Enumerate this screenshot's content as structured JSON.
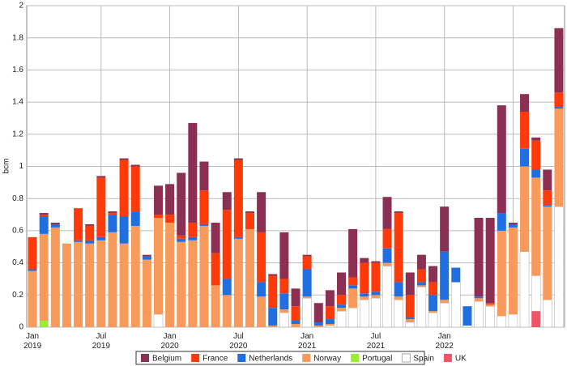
{
  "chart_data": {
    "type": "bar",
    "stacked": true,
    "y_label": "bcm",
    "categories": [
      "Jan 2019",
      null,
      null,
      null,
      null,
      null,
      "Jul 2019",
      null,
      null,
      null,
      null,
      null,
      "Jan 2020",
      null,
      null,
      null,
      null,
      null,
      "Jul 2020",
      null,
      null,
      null,
      null,
      null,
      "Jan 2021",
      null,
      null,
      null,
      null,
      null,
      "Jul 2021",
      null,
      null,
      null,
      null,
      null,
      "Jan 2022",
      null,
      null,
      null,
      null,
      null,
      null,
      null,
      null,
      null,
      null
    ],
    "ylim": [
      0,
      2
    ],
    "yticks": [
      0,
      0.2,
      0.4,
      0.6,
      0.8,
      1,
      1.2,
      1.4,
      1.6,
      1.8,
      2
    ],
    "grid": true,
    "series": [
      {
        "name": "UK",
        "color": "#ee5566",
        "values": [
          0,
          0,
          0,
          0,
          0,
          0,
          0,
          0,
          0,
          0,
          0,
          0,
          0,
          0,
          0,
          0,
          0,
          0,
          0,
          0,
          0,
          0,
          0,
          0,
          0,
          0,
          0,
          0,
          0,
          0,
          0,
          0,
          0,
          0,
          0,
          0,
          0,
          0,
          0,
          0,
          0,
          0,
          0,
          0,
          0.1,
          0,
          0
        ]
      },
      {
        "name": "Spain",
        "color": "#ffffff",
        "values": [
          0,
          0,
          0,
          0,
          0,
          0,
          0,
          0,
          0,
          0,
          0,
          0.08,
          0,
          0,
          0,
          0,
          0,
          0,
          0,
          0,
          0,
          0,
          0.09,
          0,
          0.18,
          0,
          0.01,
          0.1,
          0.12,
          0.17,
          0.18,
          0.38,
          0.17,
          0.03,
          0.25,
          0.09,
          0.15,
          0.28,
          0.01,
          0.16,
          0.13,
          0.07,
          0.08,
          0.47,
          0.22,
          0.17,
          0.75
        ]
      },
      {
        "name": "Portugal",
        "color": "#99ee33",
        "values": [
          0,
          0.04,
          0,
          0,
          0,
          0,
          0,
          0,
          0,
          0,
          0,
          0,
          0,
          0,
          0,
          0,
          0,
          0,
          0,
          0,
          0,
          0,
          0,
          0,
          0,
          0,
          0,
          0,
          0,
          0,
          0,
          0,
          0,
          0,
          0,
          0,
          0,
          0,
          0,
          0,
          0,
          0,
          0,
          0,
          0,
          0,
          0
        ]
      },
      {
        "name": "Norway",
        "color": "#f79a5c",
        "values": [
          0.35,
          0.54,
          0.62,
          0.52,
          0.53,
          0.52,
          0.54,
          0.59,
          0.52,
          0.63,
          0.42,
          0.6,
          0.65,
          0.53,
          0.54,
          0.63,
          0.26,
          0.2,
          0.55,
          0.61,
          0.19,
          0.01,
          0.02,
          0.02,
          0.01,
          0.01,
          0.01,
          0.02,
          0.12,
          0.02,
          0.02,
          0.02,
          0.02,
          0.02,
          0.01,
          0.01,
          0.02,
          0,
          0,
          0.02,
          0.01,
          0.53,
          0.54,
          0.53,
          0.61,
          0.58,
          0.61
        ]
      },
      {
        "name": "Netherlands",
        "color": "#1f6fe0",
        "values": [
          0.01,
          0.11,
          0.02,
          0,
          0.01,
          0.02,
          0.02,
          0.11,
          0.17,
          0.09,
          0.02,
          0,
          0,
          0.02,
          0.02,
          0.01,
          0,
          0.1,
          0.01,
          0,
          0.09,
          0.11,
          0.1,
          0.02,
          0.17,
          0.02,
          0.03,
          0.02,
          0.02,
          0.02,
          0.02,
          0.09,
          0.09,
          0.01,
          0.02,
          0.1,
          0.3,
          0.09,
          0.12,
          0.01,
          0,
          0.11,
          0.02,
          0.11,
          0.05,
          0.01,
          0.01
        ]
      },
      {
        "name": "France",
        "color": "#ff3a0a",
        "values": [
          0.2,
          0.01,
          0,
          0,
          0.2,
          0.09,
          0.37,
          0.01,
          0.35,
          0.28,
          0,
          0.02,
          0.05,
          0.02,
          0.09,
          0.21,
          0.2,
          0.43,
          0.48,
          0.1,
          0.31,
          0.2,
          0.09,
          0.09,
          0.08,
          0,
          0.08,
          0.06,
          0.05,
          0.19,
          0.18,
          0.12,
          0.43,
          0.14,
          0.08,
          0.08,
          0,
          0,
          0,
          0,
          0.01,
          0,
          0,
          0.23,
          0.18,
          0.09,
          0.09
        ]
      },
      {
        "name": "Belgium",
        "color": "#8b3052",
        "values": [
          0,
          0.01,
          0.01,
          0,
          0,
          0.01,
          0.01,
          0.01,
          0.01,
          0.01,
          0.01,
          0.18,
          0.19,
          0.39,
          0.62,
          0.18,
          0.19,
          0.11,
          0.01,
          0.01,
          0.25,
          0.01,
          0.29,
          0.11,
          0.01,
          0.12,
          0.1,
          0.14,
          0.3,
          0.03,
          0.01,
          0.2,
          0.01,
          0.14,
          0.09,
          0.1,
          0.28,
          0,
          0,
          0.49,
          0.53,
          0.67,
          0.01,
          0.11,
          0.02,
          0.13,
          0.4
        ]
      }
    ],
    "legend_order": [
      "Belgium",
      "France",
      "Netherlands",
      "Norway",
      "Portugal",
      "Spain",
      "UK"
    ]
  }
}
